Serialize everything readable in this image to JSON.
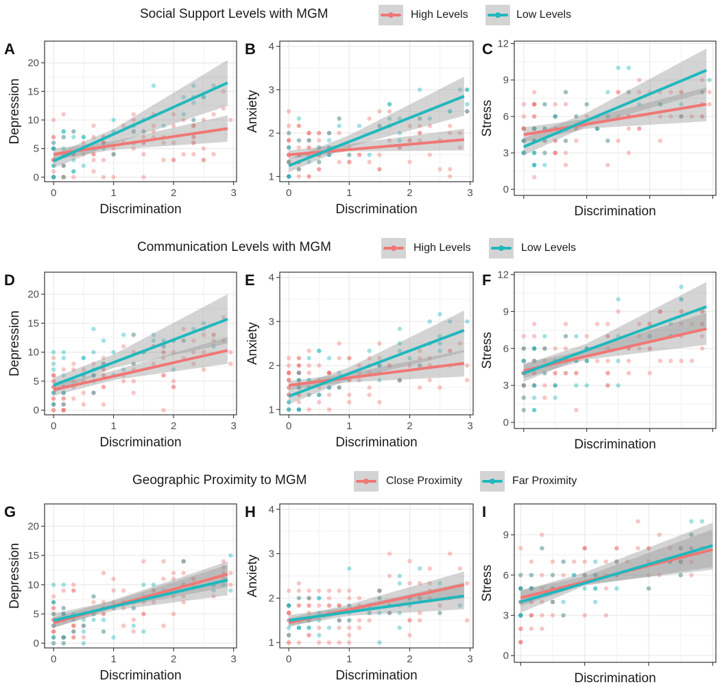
{
  "figure": {
    "colors": {
      "red": "#F07775",
      "teal": "#20B8BD",
      "band": "#999999",
      "grid": "#ebebeb",
      "border": "#333333"
    },
    "legends": [
      {
        "title": "Social Support Levels with MGM",
        "items": [
          {
            "label": "High Levels",
            "color": "#F07775"
          },
          {
            "label": "Low Levels",
            "color": "#20B8BD"
          }
        ]
      },
      {
        "title": "Communication Levels with MGM",
        "items": [
          {
            "label": "High Levels",
            "color": "#F07775"
          },
          {
            "label": "Low Levels",
            "color": "#20B8BD"
          }
        ]
      },
      {
        "title": "Geographic Proximity to MGM",
        "items": [
          {
            "label": "Close Proximity",
            "color": "#F07775"
          },
          {
            "label": "Far Proximity",
            "color": "#20B8BD"
          }
        ]
      }
    ]
  },
  "chart_data": [
    {
      "panel": "A",
      "type": "scatter",
      "xlabel": "Discrimination",
      "ylabel": "Depression",
      "xlim": [
        -0.15,
        3.05
      ],
      "ylim": [
        -0.8,
        23.8
      ],
      "xticks": [
        0,
        1,
        2,
        3
      ],
      "xtick_labels": [
        "0",
        "1",
        "2",
        "3"
      ],
      "yticks": [
        0,
        5,
        10,
        15,
        20
      ],
      "ytick_labels": [
        "0",
        "5",
        "10",
        "15",
        "20"
      ],
      "grid": true,
      "series": [
        {
          "name": "High Levels",
          "color": "#F07775",
          "fit": [
            [
              0,
              4.0
            ],
            [
              2.9,
              8.5
            ]
          ],
          "ci": [
            [
              0,
              3.0,
              5.0
            ],
            [
              1,
              4.8,
              6.3
            ],
            [
              2.9,
              6.2,
              10.8
            ]
          ]
        },
        {
          "name": "Low Levels",
          "color": "#20B8BD",
          "fit": [
            [
              0,
              2.8
            ],
            [
              2.9,
              16.5
            ]
          ],
          "ci": [
            [
              0,
              1.6,
              4.0
            ],
            [
              1,
              5.8,
              8.4
            ],
            [
              2.9,
              12.5,
              20.5
            ]
          ]
        }
      ]
    },
    {
      "panel": "B",
      "type": "scatter",
      "xlabel": "Discrimination",
      "ylabel": "Anxiety",
      "xlim": [
        -0.15,
        3.05
      ],
      "ylim": [
        0.88,
        4.12
      ],
      "xticks": [
        0,
        1,
        2,
        3
      ],
      "xtick_labels": [
        "0",
        "1",
        "2",
        "3"
      ],
      "yticks": [
        1,
        2,
        3,
        4
      ],
      "ytick_labels": [
        "1",
        "2",
        "3",
        "4"
      ],
      "grid": true,
      "series": [
        {
          "name": "High Levels",
          "color": "#F07775",
          "fit": [
            [
              0,
              1.5
            ],
            [
              2.9,
              1.85
            ]
          ],
          "ci": [
            [
              0,
              1.4,
              1.6
            ],
            [
              1,
              1.58,
              1.75
            ],
            [
              2.9,
              1.6,
              2.1
            ]
          ]
        },
        {
          "name": "Low Levels",
          "color": "#20B8BD",
          "fit": [
            [
              0,
              1.25
            ],
            [
              2.9,
              2.85
            ]
          ],
          "ci": [
            [
              0,
              1.1,
              1.4
            ],
            [
              1,
              1.68,
              1.95
            ],
            [
              2.9,
              2.4,
              3.3
            ]
          ]
        }
      ]
    },
    {
      "panel": "C",
      "type": "scatter",
      "xlabel": "Discrimination",
      "ylabel": "Stress",
      "xlim": [
        -0.15,
        3.05
      ],
      "ylim": [
        -0.5,
        12.2
      ],
      "xticks": [
        0,
        1,
        2,
        3
      ],
      "xtick_labels": [
        "",
        "",
        "",
        ""
      ],
      "yticks": [
        0,
        3,
        6,
        9,
        12
      ],
      "ytick_labels": [
        "0",
        "3",
        "6",
        "9",
        "12"
      ],
      "grid": true,
      "series": [
        {
          "name": "High Levels",
          "color": "#F07775",
          "fit": [
            [
              0,
              4.5
            ],
            [
              2.9,
              7.0
            ]
          ],
          "ci": [
            [
              0,
              3.9,
              5.1
            ],
            [
              1,
              5.0,
              5.8
            ],
            [
              2.9,
              5.6,
              8.4
            ]
          ]
        },
        {
          "name": "Low Levels",
          "color": "#20B8BD",
          "fit": [
            [
              0,
              3.5
            ],
            [
              2.9,
              9.8
            ]
          ],
          "ci": [
            [
              0,
              2.8,
              4.2
            ],
            [
              1,
              5.2,
              6.3
            ],
            [
              2.9,
              8.0,
              11.6
            ]
          ]
        }
      ]
    },
    {
      "panel": "D",
      "type": "scatter",
      "xlabel": "Discrimination",
      "ylabel": "Depression",
      "xlim": [
        -0.15,
        3.05
      ],
      "ylim": [
        -0.8,
        23.8
      ],
      "xticks": [
        0,
        1,
        2,
        3
      ],
      "xtick_labels": [
        "0",
        "1",
        "2",
        "3"
      ],
      "yticks": [
        0,
        5,
        10,
        15,
        20
      ],
      "ytick_labels": [
        "0",
        "5",
        "10",
        "15",
        "20"
      ],
      "grid": true,
      "series": [
        {
          "name": "High Levels",
          "color": "#F07775",
          "fit": [
            [
              0,
              3.5
            ],
            [
              2.9,
              10.3
            ]
          ],
          "ci": [
            [
              0,
              2.5,
              4.5
            ],
            [
              1,
              5.2,
              6.8
            ],
            [
              2.9,
              8.0,
              12.6
            ]
          ]
        },
        {
          "name": "Low Levels",
          "color": "#20B8BD",
          "fit": [
            [
              0,
              4.3
            ],
            [
              2.9,
              15.7
            ]
          ],
          "ci": [
            [
              0,
              3.0,
              5.6
            ],
            [
              1,
              7.3,
              9.6
            ],
            [
              2.9,
              11.5,
              20.0
            ]
          ]
        }
      ]
    },
    {
      "panel": "E",
      "type": "scatter",
      "xlabel": "Discrimination",
      "ylabel": "Anxiety",
      "xlim": [
        -0.15,
        3.05
      ],
      "ylim": [
        0.88,
        4.12
      ],
      "xticks": [
        0,
        1,
        2,
        3
      ],
      "xtick_labels": [
        "0",
        "1",
        "2",
        "3"
      ],
      "yticks": [
        1,
        2,
        3,
        4
      ],
      "ytick_labels": [
        "1",
        "2",
        "3",
        "4"
      ],
      "grid": true,
      "series": [
        {
          "name": "High Levels",
          "color": "#F07775",
          "fit": [
            [
              0,
              1.55
            ],
            [
              2.9,
              2.05
            ]
          ],
          "ci": [
            [
              0,
              1.45,
              1.65
            ],
            [
              1,
              1.62,
              1.82
            ],
            [
              2.9,
              1.75,
              2.35
            ]
          ]
        },
        {
          "name": "Low Levels",
          "color": "#20B8BD",
          "fit": [
            [
              0,
              1.3
            ],
            [
              2.9,
              2.8
            ]
          ],
          "ci": [
            [
              0,
              1.12,
              1.48
            ],
            [
              1,
              1.68,
              1.96
            ],
            [
              2.9,
              2.3,
              3.25
            ]
          ]
        }
      ]
    },
    {
      "panel": "F",
      "type": "scatter",
      "xlabel": "Discrimination",
      "ylabel": "Stress",
      "xlim": [
        -0.15,
        3.05
      ],
      "ylim": [
        -0.5,
        12.2
      ],
      "xticks": [
        0,
        1,
        2,
        3
      ],
      "xtick_labels": [
        "",
        "",
        "",
        ""
      ],
      "yticks": [
        0,
        3,
        6,
        9,
        12
      ],
      "ytick_labels": [
        "0",
        "3",
        "6",
        "9",
        "12"
      ],
      "grid": true,
      "series": [
        {
          "name": "High Levels",
          "color": "#F07775",
          "fit": [
            [
              0,
              4.2
            ],
            [
              2.9,
              7.6
            ]
          ],
          "ci": [
            [
              0,
              3.6,
              4.8
            ],
            [
              1,
              5.1,
              5.9
            ],
            [
              2.9,
              6.3,
              8.9
            ]
          ]
        },
        {
          "name": "Low Levels",
          "color": "#20B8BD",
          "fit": [
            [
              0,
              4.0
            ],
            [
              2.9,
              9.4
            ]
          ],
          "ci": [
            [
              0,
              3.3,
              4.7
            ],
            [
              1,
              5.4,
              6.4
            ],
            [
              2.9,
              7.5,
              11.4
            ]
          ]
        }
      ]
    },
    {
      "panel": "G",
      "type": "scatter",
      "xlabel": "Discrimination",
      "ylabel": "Depression",
      "xlim": [
        -0.15,
        3.05
      ],
      "ylim": [
        -0.8,
        23.8
      ],
      "xticks": [
        0,
        1,
        2,
        3
      ],
      "xtick_labels": [
        "0",
        "1",
        "2",
        "3"
      ],
      "yticks": [
        0,
        5,
        10,
        15,
        20
      ],
      "ytick_labels": [
        "0",
        "5",
        "10",
        "15",
        "20"
      ],
      "grid": true,
      "series": [
        {
          "name": "Close Proximity",
          "color": "#F07775",
          "fit": [
            [
              0,
              3.5
            ],
            [
              2.9,
              11.8
            ]
          ],
          "ci": [
            [
              0,
              2.6,
              4.4
            ],
            [
              1,
              6.0,
              7.4
            ],
            [
              2.9,
              9.6,
              14.0
            ]
          ]
        },
        {
          "name": "Far Proximity",
          "color": "#20B8BD",
          "fit": [
            [
              0,
              3.9
            ],
            [
              2.9,
              10.8
            ]
          ],
          "ci": [
            [
              0,
              2.7,
              5.1
            ],
            [
              1,
              5.6,
              7.2
            ],
            [
              2.9,
              8.2,
              13.4
            ]
          ]
        }
      ]
    },
    {
      "panel": "H",
      "type": "scatter",
      "xlabel": "Discrimination",
      "ylabel": "Anxiety",
      "xlim": [
        -0.15,
        3.05
      ],
      "ylim": [
        0.88,
        4.12
      ],
      "xticks": [
        0,
        1,
        2,
        3
      ],
      "xtick_labels": [
        "0",
        "1",
        "2",
        "3"
      ],
      "yticks": [
        1,
        2,
        3,
        4
      ],
      "ytick_labels": [
        "1",
        "2",
        "3",
        "4"
      ],
      "grid": true,
      "series": [
        {
          "name": "Close Proximity",
          "color": "#F07775",
          "fit": [
            [
              0,
              1.45
            ],
            [
              2.9,
              2.3
            ]
          ],
          "ci": [
            [
              0,
              1.35,
              1.55
            ],
            [
              1,
              1.68,
              1.86
            ],
            [
              2.9,
              2.0,
              2.6
            ]
          ]
        },
        {
          "name": "Far Proximity",
          "color": "#20B8BD",
          "fit": [
            [
              0,
              1.5
            ],
            [
              2.9,
              2.05
            ]
          ],
          "ci": [
            [
              0,
              1.38,
              1.62
            ],
            [
              1,
              1.6,
              1.8
            ],
            [
              2.9,
              1.75,
              2.35
            ]
          ]
        }
      ]
    },
    {
      "panel": "I",
      "type": "scatter",
      "xlabel": "Discrimination",
      "ylabel": "Stress",
      "xlim": [
        -0.1,
        3.05
      ],
      "ylim": [
        -0.5,
        11.3
      ],
      "xticks": [
        0,
        1,
        2,
        3
      ],
      "xtick_labels": [
        "",
        "",
        "",
        ""
      ],
      "yticks": [
        0,
        3,
        6,
        9
      ],
      "ytick_labels": [
        "0",
        "3",
        "6",
        "9"
      ],
      "grid": true,
      "series": [
        {
          "name": "Close Proximity",
          "color": "#F07775",
          "fit": [
            [
              0,
              4.3
            ],
            [
              3.0,
              7.9
            ]
          ],
          "ci": [
            [
              0,
              3.7,
              4.9
            ],
            [
              1,
              5.3,
              5.9
            ],
            [
              3.0,
              6.4,
              9.4
            ]
          ]
        },
        {
          "name": "Far Proximity",
          "color": "#20B8BD",
          "fit": [
            [
              0,
              4.0
            ],
            [
              3.0,
              8.2
            ]
          ],
          "ci": [
            [
              0,
              3.2,
              4.8
            ],
            [
              1,
              5.2,
              6.2
            ],
            [
              3.0,
              6.6,
              9.9
            ]
          ]
        }
      ]
    }
  ]
}
